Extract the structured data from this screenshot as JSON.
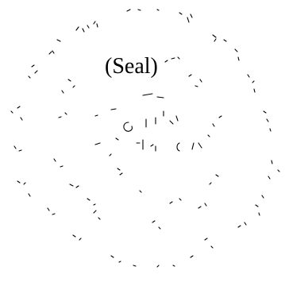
{
  "document": {
    "seal_label": "(Seal)"
  },
  "colors": {
    "ink": "#000000",
    "background": "#ffffff"
  }
}
